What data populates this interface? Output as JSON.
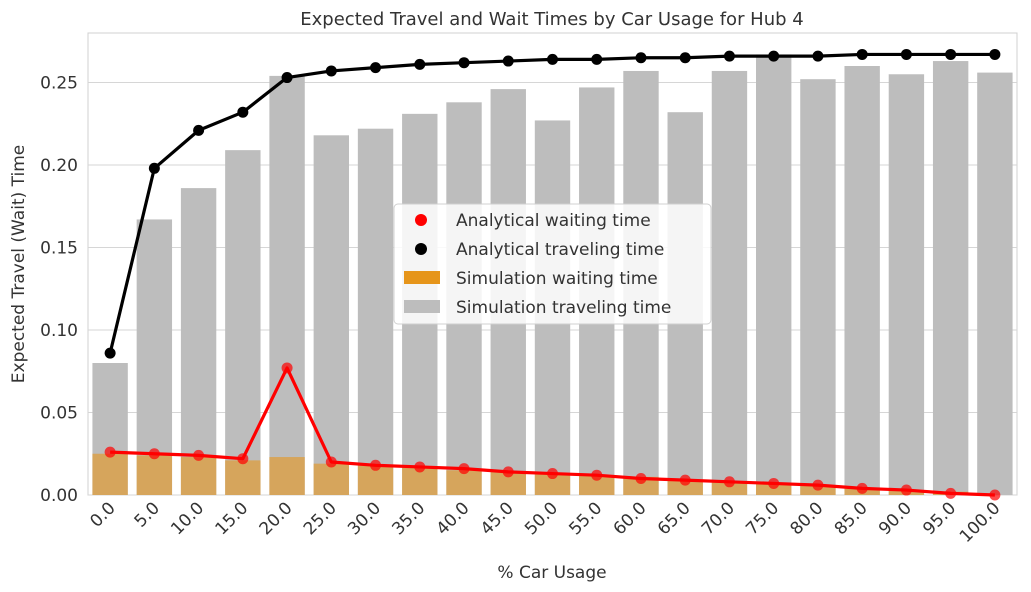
{
  "chart_data": {
    "type": "bar",
    "title": "Expected Travel and Wait Times by Car Usage for Hub 4",
    "xlabel": "% Car Usage",
    "ylabel": "Expected Travel (Wait) Time",
    "ylim": [
      0,
      0.28
    ],
    "yticks": [
      "0.00",
      "0.05",
      "0.10",
      "0.15",
      "0.20",
      "0.25"
    ],
    "ytick_values": [
      0,
      0.05,
      0.1,
      0.15,
      0.2,
      0.25
    ],
    "grid": true,
    "legend_position": "center-right",
    "categories": [
      "0.0",
      "5.0",
      "10.0",
      "15.0",
      "20.0",
      "25.0",
      "30.0",
      "35.0",
      "40.0",
      "45.0",
      "50.0",
      "55.0",
      "60.0",
      "65.0",
      "70.0",
      "75.0",
      "80.0",
      "85.0",
      "90.0",
      "95.0",
      "100.0"
    ],
    "series": [
      {
        "name": "Simulation traveling time",
        "kind": "bar",
        "color": "#bdbdbd",
        "values": [
          0.08,
          0.167,
          0.186,
          0.209,
          0.254,
          0.218,
          0.222,
          0.231,
          0.238,
          0.246,
          0.227,
          0.247,
          0.257,
          0.232,
          0.257,
          0.267,
          0.252,
          0.26,
          0.255,
          0.263,
          0.256
        ]
      },
      {
        "name": "Simulation waiting time",
        "kind": "bar",
        "color": "#e6951a",
        "values": [
          0.025,
          0.024,
          0.023,
          0.021,
          0.023,
          0.019,
          0.018,
          0.017,
          0.015,
          0.014,
          0.013,
          0.012,
          0.011,
          0.009,
          0.008,
          0.007,
          0.006,
          0.004,
          0.003,
          0.002,
          0.0
        ]
      },
      {
        "name": "Analytical waiting time",
        "kind": "line",
        "color": "#ff0000",
        "values": [
          0.026,
          0.025,
          0.024,
          0.022,
          0.077,
          0.02,
          0.018,
          0.017,
          0.016,
          0.014,
          0.013,
          0.012,
          0.01,
          0.009,
          0.008,
          0.007,
          0.006,
          0.004,
          0.003,
          0.001,
          0.0
        ]
      },
      {
        "name": "Analytical traveling time",
        "kind": "line",
        "color": "#000000",
        "values": [
          0.086,
          0.198,
          0.221,
          0.232,
          0.253,
          0.257,
          0.259,
          0.261,
          0.262,
          0.263,
          0.264,
          0.264,
          0.265,
          0.265,
          0.266,
          0.266,
          0.266,
          0.267,
          0.267,
          0.267,
          0.267
        ]
      }
    ],
    "legend": [
      {
        "label": "Analytical waiting time",
        "marker": "dot",
        "color": "#ff0000"
      },
      {
        "label": "Analytical traveling time",
        "marker": "dot",
        "color": "#000000"
      },
      {
        "label": "Simulation waiting time",
        "marker": "patch",
        "color": "#e6951a"
      },
      {
        "label": "Simulation traveling time",
        "marker": "patch",
        "color": "#bdbdbd"
      }
    ]
  }
}
